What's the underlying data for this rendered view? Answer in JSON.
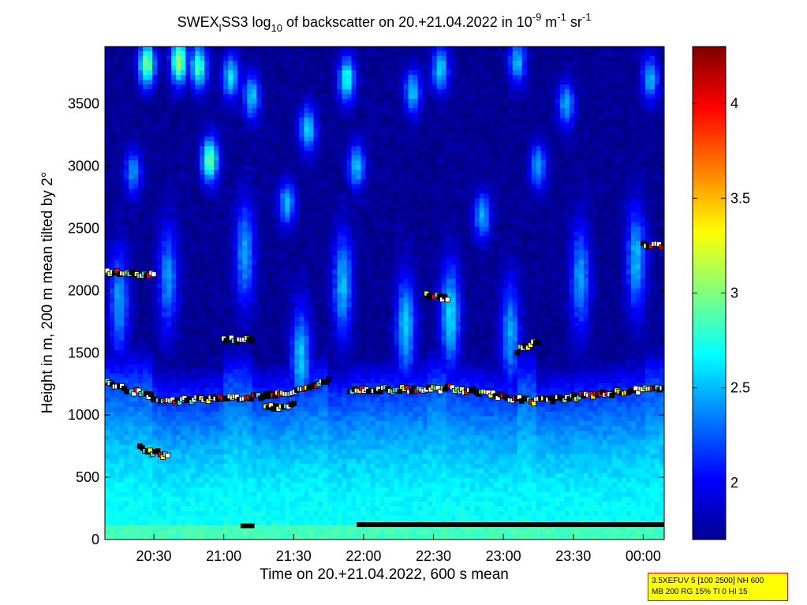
{
  "chart_data": {
    "type": "heatmap",
    "title": {
      "prefix": "SWEX",
      "sub1": "l",
      "mid": "SS3 log",
      "sub2": "10",
      "rest": " of backscatter on 20.+21.04.2022 in 10",
      "sup1": "-9",
      "unit_a": " m",
      "sup2": "-1",
      "unit_b": " sr",
      "sup3": "-1"
    },
    "xlabel": "Time on 20.+21.04.2022, 600 s mean",
    "ylabel": "Height in m, 200 m mean tilted by 2°",
    "x_start_hours": 20.15,
    "x_end_hours": 24.15,
    "xticks": [
      {
        "label": "20:30",
        "value": 20.5
      },
      {
        "label": "21:00",
        "value": 21.0
      },
      {
        "label": "21:30",
        "value": 21.5
      },
      {
        "label": "22:00",
        "value": 22.0
      },
      {
        "label": "22:30",
        "value": 22.5
      },
      {
        "label": "23:00",
        "value": 23.0
      },
      {
        "label": "23:30",
        "value": 23.5
      },
      {
        "label": "00:00",
        "value": 24.0
      }
    ],
    "ylim": [
      0,
      3960
    ],
    "yticks": [
      "0",
      "500",
      "1000",
      "1500",
      "2000",
      "2500",
      "3000",
      "3500"
    ],
    "colorbar": {
      "range": [
        1.7,
        4.3
      ],
      "ticks": [
        "2",
        "2.5",
        "3",
        "3.5",
        "4"
      ],
      "colormap": "jet"
    },
    "field": {
      "background_value": 1.75,
      "surface_value": 2.7,
      "upper_plumes": [
        {
          "t": 20.45,
          "h": 3820,
          "v": 3.0
        },
        {
          "t": 20.68,
          "h": 3840,
          "v": 3.1
        },
        {
          "t": 20.82,
          "h": 3800,
          "v": 2.85
        },
        {
          "t": 21.05,
          "h": 3720,
          "v": 2.6
        },
        {
          "t": 21.2,
          "h": 3560,
          "v": 2.55
        },
        {
          "t": 21.6,
          "h": 3300,
          "v": 2.6
        },
        {
          "t": 21.88,
          "h": 3700,
          "v": 2.75
        },
        {
          "t": 22.35,
          "h": 3600,
          "v": 2.55
        },
        {
          "t": 22.55,
          "h": 3780,
          "v": 2.6
        },
        {
          "t": 23.1,
          "h": 3840,
          "v": 2.5
        },
        {
          "t": 23.45,
          "h": 3500,
          "v": 2.5
        },
        {
          "t": 24.05,
          "h": 3700,
          "v": 2.5
        },
        {
          "t": 20.9,
          "h": 3050,
          "v": 2.95
        },
        {
          "t": 21.45,
          "h": 2700,
          "v": 2.5
        },
        {
          "t": 21.95,
          "h": 3000,
          "v": 2.55
        },
        {
          "t": 22.85,
          "h": 2600,
          "v": 2.5
        },
        {
          "t": 23.25,
          "h": 3000,
          "v": 2.45
        },
        {
          "t": 20.35,
          "h": 2950,
          "v": 2.4
        }
      ],
      "mid_plumes": [
        {
          "t": 20.25,
          "h": 1900,
          "v": 2.45
        },
        {
          "t": 20.6,
          "h": 2100,
          "v": 2.4
        },
        {
          "t": 21.15,
          "h": 2300,
          "v": 2.45
        },
        {
          "t": 21.85,
          "h": 2050,
          "v": 2.5
        },
        {
          "t": 22.3,
          "h": 1700,
          "v": 2.55
        },
        {
          "t": 22.62,
          "h": 1800,
          "v": 2.6
        },
        {
          "t": 23.05,
          "h": 1650,
          "v": 2.45
        },
        {
          "t": 23.55,
          "h": 2100,
          "v": 2.45
        },
        {
          "t": 23.95,
          "h": 2250,
          "v": 2.5
        },
        {
          "t": 21.55,
          "h": 1450,
          "v": 2.55
        }
      ],
      "cloud_base_layers": [
        {
          "t0": 20.15,
          "t1": 20.6,
          "h0": 1260,
          "h1": 1110
        },
        {
          "t0": 20.6,
          "t1": 21.4,
          "h0": 1110,
          "h1": 1160
        },
        {
          "t0": 21.4,
          "t1": 21.75,
          "h0": 1160,
          "h1": 1280
        },
        {
          "t0": 21.9,
          "t1": 22.6,
          "h0": 1200,
          "h1": 1210
        },
        {
          "t0": 22.6,
          "t1": 23.2,
          "h0": 1220,
          "h1": 1110
        },
        {
          "t0": 23.2,
          "t1": 24.15,
          "h0": 1110,
          "h1": 1220
        },
        {
          "t0": 20.15,
          "t1": 20.5,
          "h0": 2150,
          "h1": 2120
        },
        {
          "t0": 21.0,
          "t1": 21.2,
          "h0": 1610,
          "h1": 1600
        },
        {
          "t0": 22.45,
          "t1": 22.6,
          "h0": 1960,
          "h1": 1940
        },
        {
          "t0": 23.1,
          "t1": 23.25,
          "h0": 1520,
          "h1": 1600
        },
        {
          "t0": 24.0,
          "t1": 24.15,
          "h0": 2380,
          "h1": 2350
        },
        {
          "t0": 21.3,
          "t1": 21.5,
          "h0": 1060,
          "h1": 1080
        },
        {
          "t0": 20.4,
          "t1": 20.6,
          "h0": 730,
          "h1": 670
        }
      ],
      "surface_bars": [
        {
          "t0": 21.12,
          "t1": 21.22,
          "h": 110
        },
        {
          "t0": 21.95,
          "t1": 24.15,
          "h": 120
        }
      ]
    }
  },
  "settings_box": {
    "line1": "3.5XEFUV 5 [100 2500] NH 600",
    "line2": "MB 200 RG 15% TI 0 HI 15"
  }
}
